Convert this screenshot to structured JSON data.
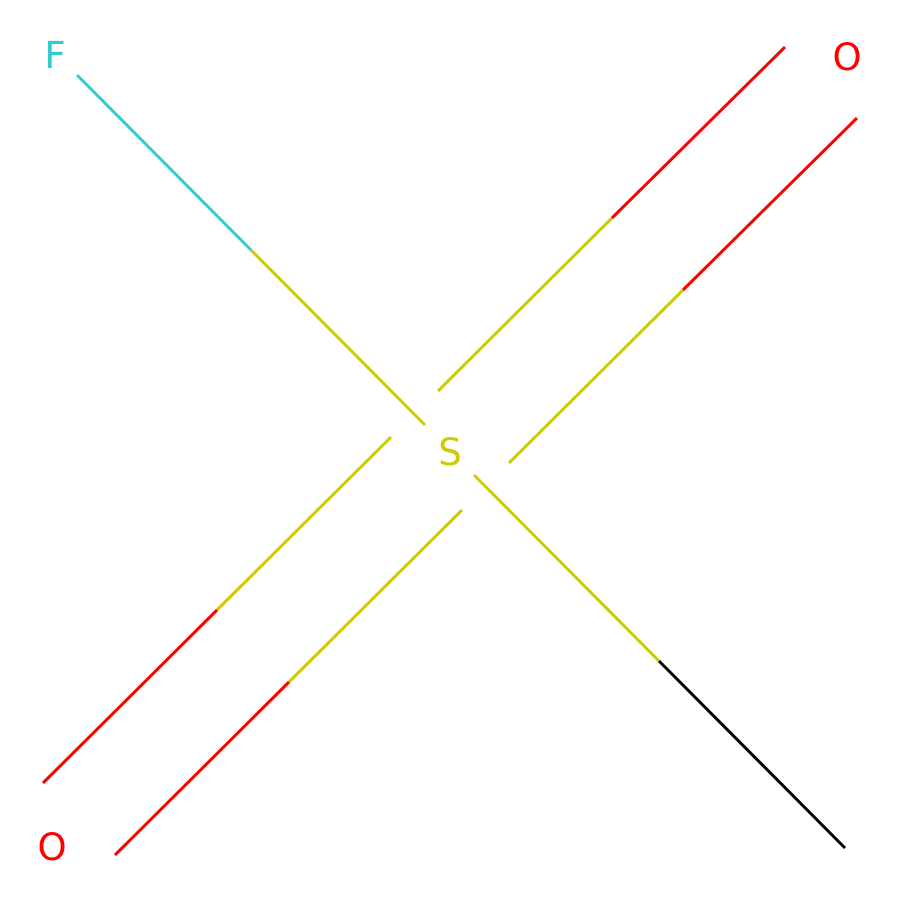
{
  "molecule": {
    "atoms": [
      {
        "id": "F",
        "symbol": "F",
        "color": "#33CCCC"
      },
      {
        "id": "S",
        "symbol": "S",
        "color": "#CCCC00"
      },
      {
        "id": "O_top",
        "symbol": "O",
        "color": "#FF0000"
      },
      {
        "id": "O_bottom",
        "symbol": "O",
        "color": "#FF0000"
      },
      {
        "id": "C",
        "symbol": "",
        "color": "#000000"
      }
    ],
    "bonds": [
      {
        "from": "S",
        "to": "F",
        "order": 1
      },
      {
        "from": "S",
        "to": "O_top",
        "order": 2
      },
      {
        "from": "S",
        "to": "O_bottom",
        "order": 2
      },
      {
        "from": "S",
        "to": "C",
        "order": 1
      }
    ]
  }
}
